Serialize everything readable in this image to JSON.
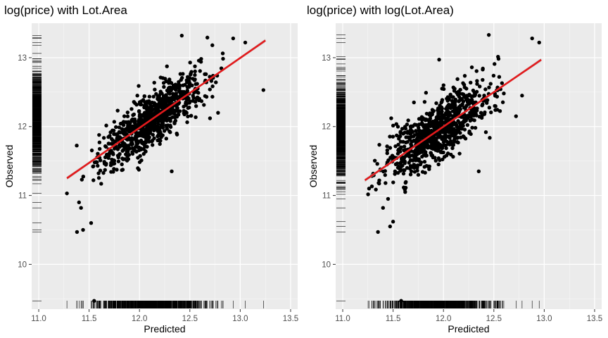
{
  "colors": {
    "panel_bg": "#ebebeb",
    "grid_major": "#ffffff",
    "point": "#000000",
    "fit_line": "#e31a1c",
    "ribbon": "#bdbdbd",
    "tick_text": "#4d4d4d"
  },
  "chart_data": [
    {
      "type": "scatter",
      "title": "log(price) with Lot.Area",
      "xlabel": "Predicted",
      "ylabel": "Observed",
      "xlim": [
        10.93,
        13.57
      ],
      "ylim": [
        9.35,
        13.5
      ],
      "xticks": [
        11.0,
        11.5,
        12.0,
        12.5,
        13.0,
        13.5
      ],
      "xtick_labels": [
        "11.0",
        "11.5",
        "12.0",
        "12.5",
        "13.0",
        "13.5"
      ],
      "yticks": [
        10,
        11,
        12,
        13
      ],
      "ytick_labels": [
        "10",
        "11",
        "12",
        "13"
      ],
      "grid": true,
      "rug": true,
      "fit": {
        "x": [
          11.28,
          13.25
        ],
        "y": [
          11.25,
          13.25
        ],
        "se_band": true
      },
      "x_range": [
        11.28,
        13.25
      ],
      "slope": 1.02,
      "intercept": -0.26,
      "noise_sd": 0.2,
      "seed": 7,
      "n_points": 850,
      "outliers": [
        {
          "x": 11.55,
          "y": 9.47
        },
        {
          "x": 11.38,
          "y": 10.47
        },
        {
          "x": 11.44,
          "y": 10.5
        },
        {
          "x": 11.52,
          "y": 10.6
        },
        {
          "x": 11.42,
          "y": 10.82
        },
        {
          "x": 11.4,
          "y": 10.9
        },
        {
          "x": 11.28,
          "y": 11.03
        },
        {
          "x": 12.32,
          "y": 11.35
        },
        {
          "x": 12.42,
          "y": 13.32
        },
        {
          "x": 12.93,
          "y": 13.28
        },
        {
          "x": 13.05,
          "y": 13.22
        },
        {
          "x": 13.23,
          "y": 12.53
        },
        {
          "x": 12.78,
          "y": 12.2
        },
        {
          "x": 12.7,
          "y": 12.12
        },
        {
          "x": 11.62,
          "y": 11.17
        }
      ]
    },
    {
      "type": "scatter",
      "title": "log(price) with log(Lot.Area)",
      "xlabel": "Predicted",
      "ylabel": "Observed",
      "xlim": [
        10.93,
        13.57
      ],
      "ylim": [
        9.35,
        13.5
      ],
      "xticks": [
        11.0,
        11.5,
        12.0,
        12.5,
        13.0,
        13.5
      ],
      "xtick_labels": [
        "11.0",
        "11.5",
        "12.0",
        "12.5",
        "13.0",
        "13.5"
      ],
      "yticks": [
        10,
        11,
        12,
        13
      ],
      "ytick_labels": [
        "10",
        "11",
        "12",
        "13"
      ],
      "grid": true,
      "rug": true,
      "fit": {
        "x": [
          11.22,
          12.97
        ],
        "y": [
          11.22,
          12.97
        ],
        "se_band": true
      },
      "x_range": [
        11.22,
        12.97
      ],
      "slope": 1.0,
      "intercept": 0.0,
      "noise_sd": 0.22,
      "seed": 11,
      "n_points": 850,
      "outliers": [
        {
          "x": 11.58,
          "y": 9.47
        },
        {
          "x": 11.35,
          "y": 10.47
        },
        {
          "x": 11.47,
          "y": 10.55
        },
        {
          "x": 11.5,
          "y": 10.62
        },
        {
          "x": 11.4,
          "y": 10.82
        },
        {
          "x": 11.45,
          "y": 10.95
        },
        {
          "x": 11.62,
          "y": 11.05
        },
        {
          "x": 12.35,
          "y": 11.35
        },
        {
          "x": 12.45,
          "y": 13.33
        },
        {
          "x": 12.88,
          "y": 13.28
        },
        {
          "x": 12.95,
          "y": 13.22
        },
        {
          "x": 12.78,
          "y": 12.45
        },
        {
          "x": 12.72,
          "y": 12.15
        },
        {
          "x": 11.75,
          "y": 11.3
        }
      ]
    }
  ]
}
